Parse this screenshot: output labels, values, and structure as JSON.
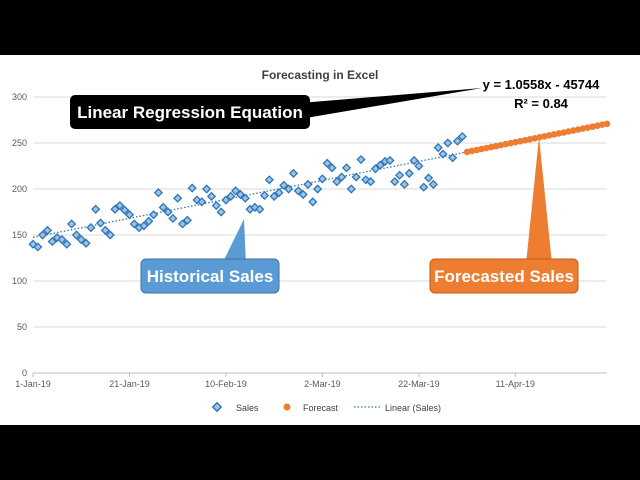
{
  "chart_data": {
    "type": "scatter",
    "title": "Forecasting in Excel",
    "xlabel": "",
    "ylabel": "",
    "ylim": [
      0,
      300
    ],
    "y_ticks": [
      0,
      50,
      100,
      150,
      200,
      250,
      300
    ],
    "x_range": [
      "1-Jan-19",
      "30-Apr-19"
    ],
    "x_tick_labels": [
      "1-Jan-19",
      "21-Jan-19",
      "10-Feb-19",
      "2-Mar-19",
      "22-Mar-19",
      "11-Apr-19"
    ],
    "grid": "horizontal",
    "legend_position": "bottom",
    "series": [
      {
        "name": "Sales",
        "color": "#2e75b6",
        "marker": "diamond",
        "x": [
          "1-Jan-19",
          "2-Jan-19",
          "3-Jan-19",
          "4-Jan-19",
          "5-Jan-19",
          "6-Jan-19",
          "7-Jan-19",
          "8-Jan-19",
          "9-Jan-19",
          "10-Jan-19",
          "11-Jan-19",
          "12-Jan-19",
          "13-Jan-19",
          "14-Jan-19",
          "15-Jan-19",
          "16-Jan-19",
          "17-Jan-19",
          "18-Jan-19",
          "19-Jan-19",
          "20-Jan-19",
          "21-Jan-19",
          "22-Jan-19",
          "23-Jan-19",
          "24-Jan-19",
          "25-Jan-19",
          "26-Jan-19",
          "27-Jan-19",
          "28-Jan-19",
          "29-Jan-19",
          "30-Jan-19",
          "31-Jan-19",
          "1-Feb-19",
          "2-Feb-19",
          "3-Feb-19",
          "4-Feb-19",
          "5-Feb-19",
          "6-Feb-19",
          "7-Feb-19",
          "8-Feb-19",
          "9-Feb-19",
          "10-Feb-19",
          "11-Feb-19",
          "12-Feb-19",
          "13-Feb-19",
          "14-Feb-19",
          "15-Feb-19",
          "16-Feb-19",
          "17-Feb-19",
          "18-Feb-19",
          "19-Feb-19",
          "20-Feb-19",
          "21-Feb-19",
          "22-Feb-19",
          "23-Feb-19",
          "24-Feb-19",
          "25-Feb-19",
          "26-Feb-19",
          "27-Feb-19",
          "28-Feb-19",
          "1-Mar-19",
          "2-Mar-19",
          "3-Mar-19",
          "4-Mar-19",
          "5-Mar-19",
          "6-Mar-19",
          "7-Mar-19",
          "8-Mar-19",
          "9-Mar-19",
          "10-Mar-19",
          "11-Mar-19",
          "12-Mar-19",
          "13-Mar-19",
          "14-Mar-19",
          "15-Mar-19",
          "16-Mar-19",
          "17-Mar-19",
          "18-Mar-19",
          "19-Mar-19",
          "20-Mar-19",
          "21-Mar-19",
          "22-Mar-19",
          "23-Mar-19",
          "24-Mar-19",
          "25-Mar-19",
          "26-Mar-19",
          "27-Mar-19",
          "28-Mar-19",
          "29-Mar-19",
          "30-Mar-19",
          "31-Mar-19"
        ],
        "y": [
          140,
          137,
          150,
          155,
          143,
          147,
          145,
          140,
          162,
          150,
          145,
          141,
          158,
          178,
          163,
          155,
          150,
          178,
          182,
          177,
          172,
          162,
          158,
          160,
          165,
          172,
          196,
          180,
          175,
          168,
          190,
          162,
          166,
          201,
          188,
          186,
          200,
          192,
          182,
          175,
          188,
          192,
          198,
          194,
          190,
          178,
          180,
          178,
          193,
          210,
          192,
          196,
          204,
          200,
          217,
          198,
          194,
          205,
          186,
          200,
          211,
          228,
          223,
          208,
          213,
          223,
          200,
          213,
          232,
          210,
          208,
          222,
          226,
          230,
          231,
          208,
          215,
          205,
          217,
          231,
          225,
          202,
          212,
          205,
          245,
          238,
          250,
          234,
          252,
          257
        ],
        "values": [
          140,
          137,
          150,
          155,
          143,
          147,
          145,
          140,
          162,
          150,
          145,
          141,
          158,
          178,
          163,
          155,
          150,
          178,
          182,
          177,
          172,
          162,
          158,
          160,
          165,
          172,
          196,
          180,
          175,
          168,
          190,
          162,
          166,
          201,
          188,
          186,
          200,
          192,
          182,
          175,
          188,
          192,
          198,
          194,
          190,
          178,
          180,
          178,
          193,
          210,
          192,
          196,
          204,
          200,
          217,
          198,
          194,
          205,
          186,
          200,
          211,
          228,
          223,
          208,
          213,
          223,
          200,
          213,
          232,
          210,
          208,
          222,
          226,
          230,
          231,
          208,
          215,
          205,
          217,
          231,
          225,
          202,
          212,
          205,
          245,
          238,
          250,
          234,
          252,
          257
        ]
      },
      {
        "name": "Forecast",
        "color": "#ed7d31",
        "marker": "circle",
        "x": [
          "1-Apr-19",
          "2-Apr-19",
          "3-Apr-19",
          "4-Apr-19",
          "5-Apr-19",
          "6-Apr-19",
          "7-Apr-19",
          "8-Apr-19",
          "9-Apr-19",
          "10-Apr-19",
          "11-Apr-19",
          "12-Apr-19",
          "13-Apr-19",
          "14-Apr-19",
          "15-Apr-19",
          "16-Apr-19",
          "17-Apr-19",
          "18-Apr-19",
          "19-Apr-19",
          "20-Apr-19",
          "21-Apr-19",
          "22-Apr-19",
          "23-Apr-19",
          "24-Apr-19",
          "25-Apr-19",
          "26-Apr-19",
          "27-Apr-19",
          "28-Apr-19",
          "29-Apr-19",
          "30-Apr-19"
        ],
        "y": [
          240.3,
          241.4,
          242.4,
          243.5,
          244.5,
          245.6,
          246.6,
          247.7,
          248.8,
          249.8,
          250.9,
          251.9,
          253.0,
          254.0,
          255.1,
          256.2,
          257.2,
          258.3,
          259.3,
          260.4,
          261.4,
          262.5,
          263.5,
          264.6,
          265.7,
          266.7,
          267.8,
          268.8,
          269.9,
          270.9
        ],
        "values": [
          240.3,
          241.4,
          242.4,
          243.5,
          244.5,
          245.6,
          246.6,
          247.7,
          248.8,
          249.8,
          250.9,
          251.9,
          253.0,
          254.0,
          255.1,
          256.2,
          257.2,
          258.3,
          259.3,
          260.4,
          261.4,
          262.5,
          263.5,
          264.6,
          265.7,
          266.7,
          267.8,
          268.8,
          269.9,
          270.9
        ]
      },
      {
        "name": "Linear (Sales)",
        "color": "#2e75b6",
        "style": "dotted",
        "x": [
          "1-Jan-19",
          "1-Apr-19"
        ],
        "y": [
          147.5,
          240.3
        ],
        "values": [
          147.5,
          240.3
        ]
      }
    ],
    "legend": [
      "Sales",
      "Forecast",
      "Linear (Sales)"
    ],
    "annotations": {
      "equation": "y = 1.0558x - 45744",
      "r_squared": "R² = 0.84"
    }
  },
  "callouts": {
    "regression": {
      "label": "Linear Regression Equation",
      "color": "#000000"
    },
    "historical": {
      "label": "Historical Sales",
      "color": "#5b9bd5"
    },
    "forecast": {
      "label": "Forecasted Sales",
      "color": "#ed7d31"
    }
  }
}
